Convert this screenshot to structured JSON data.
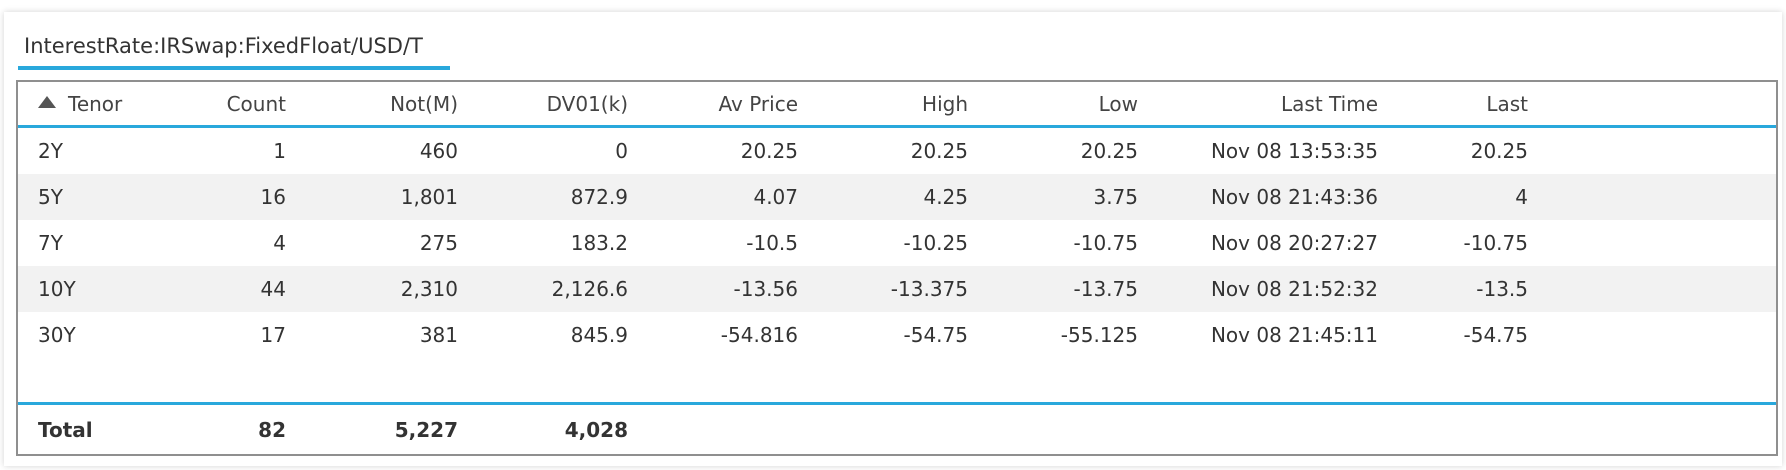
{
  "tab": {
    "label": "InterestRate:IRSwap:FixedFloat/USD/T"
  },
  "grid": {
    "columns": {
      "tenor": "Tenor",
      "count": "Count",
      "not": "Not(M)",
      "dv01": "DV01(k)",
      "avp": "Av Price",
      "high": "High",
      "low": "Low",
      "time": "Last Time",
      "last": "Last"
    },
    "sort_icon": "sort-ascending-icon",
    "rows": [
      {
        "tenor": "2Y",
        "count": "1",
        "not": "460",
        "dv01": "0",
        "avp": "20.25",
        "high": "20.25",
        "low": "20.25",
        "time": "Nov 08 13:53:35",
        "last": "20.25"
      },
      {
        "tenor": "5Y",
        "count": "16",
        "not": "1,801",
        "dv01": "872.9",
        "avp": "4.07",
        "high": "4.25",
        "low": "3.75",
        "time": "Nov 08 21:43:36",
        "last": "4"
      },
      {
        "tenor": "7Y",
        "count": "4",
        "not": "275",
        "dv01": "183.2",
        "avp": "-10.5",
        "high": "-10.25",
        "low": "-10.75",
        "time": "Nov 08 20:27:27",
        "last": "-10.75"
      },
      {
        "tenor": "10Y",
        "count": "44",
        "not": "2,310",
        "dv01": "2,126.6",
        "avp": "-13.56",
        "high": "-13.375",
        "low": "-13.75",
        "time": "Nov 08 21:52:32",
        "last": "-13.5"
      },
      {
        "tenor": "30Y",
        "count": "17",
        "not": "381",
        "dv01": "845.9",
        "avp": "-54.816",
        "high": "-54.75",
        "low": "-55.125",
        "time": "Nov 08 21:45:11",
        "last": "-54.75"
      }
    ],
    "total": {
      "label": "Total",
      "count": "82",
      "not": "5,227",
      "dv01": "4,028"
    }
  },
  "colors": {
    "accent": "#29a8dc",
    "alt_row": "#f2f2f2",
    "border": "#8f8f8f"
  }
}
